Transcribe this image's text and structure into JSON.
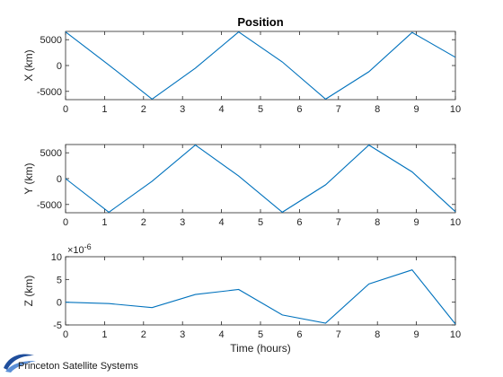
{
  "chart_data": [
    {
      "type": "line",
      "title": "Position",
      "xlabel": "",
      "ylabel": "X (km)",
      "xlim": [
        0,
        10
      ],
      "ylim": [
        -6600,
        6600
      ],
      "xticks": [
        "0",
        "1",
        "2",
        "3",
        "4",
        "5",
        "6",
        "7",
        "8",
        "9",
        "10"
      ],
      "yticks": [
        {
          "value": 5000,
          "label": "5000"
        },
        {
          "value": 0,
          "label": "0"
        },
        {
          "value": -5000,
          "label": "-5000"
        }
      ],
      "grid": false,
      "color": "#0072BD",
      "x": [
        0,
        1.11,
        2.22,
        3.33,
        4.44,
        5.56,
        6.67,
        7.78,
        8.89,
        10
      ],
      "y": [
        6500,
        100,
        -6500,
        -500,
        6500,
        700,
        -6500,
        -1200,
        6400,
        1600
      ]
    },
    {
      "type": "line",
      "title": "",
      "xlabel": "",
      "ylabel": "Y (km)",
      "xlim": [
        0,
        10
      ],
      "ylim": [
        -6600,
        6600
      ],
      "xticks": [
        "0",
        "1",
        "2",
        "3",
        "4",
        "5",
        "6",
        "7",
        "8",
        "9",
        "10"
      ],
      "yticks": [
        {
          "value": 5000,
          "label": "5000"
        },
        {
          "value": 0,
          "label": "0"
        },
        {
          "value": -5000,
          "label": "-5000"
        }
      ],
      "grid": false,
      "color": "#0072BD",
      "x": [
        0,
        1.11,
        2.22,
        3.33,
        4.44,
        5.56,
        6.67,
        7.78,
        8.89,
        10
      ],
      "y": [
        0,
        -6500,
        -500,
        6500,
        500,
        -6500,
        -1200,
        6500,
        1300,
        -6400
      ]
    },
    {
      "type": "line",
      "title": "",
      "xlabel": "Time (hours)",
      "ylabel": "Z (km)",
      "exponent_label": "×10",
      "exponent_power": "-6",
      "xlim": [
        0,
        10
      ],
      "ylim": [
        -5,
        10
      ],
      "xticks": [
        "0",
        "1",
        "2",
        "3",
        "4",
        "5",
        "6",
        "7",
        "8",
        "9",
        "10"
      ],
      "yticks": [
        {
          "value": 10,
          "label": "10"
        },
        {
          "value": 5,
          "label": "5"
        },
        {
          "value": 0,
          "label": "0"
        },
        {
          "value": -5,
          "label": "-5"
        }
      ],
      "grid": false,
      "color": "#0072BD",
      "x": [
        0,
        1.11,
        2.22,
        3.33,
        4.44,
        5.56,
        6.67,
        7.78,
        8.89,
        10
      ],
      "y": [
        0,
        -0.3,
        -1.2,
        1.7,
        2.8,
        -2.8,
        -4.6,
        4.0,
        7.1,
        -4.8
      ]
    }
  ],
  "branding": {
    "text": "Princeton Satellite Systems",
    "logo_icon": "swoosh-logo-icon",
    "logo_color": "#1f4e9c"
  }
}
